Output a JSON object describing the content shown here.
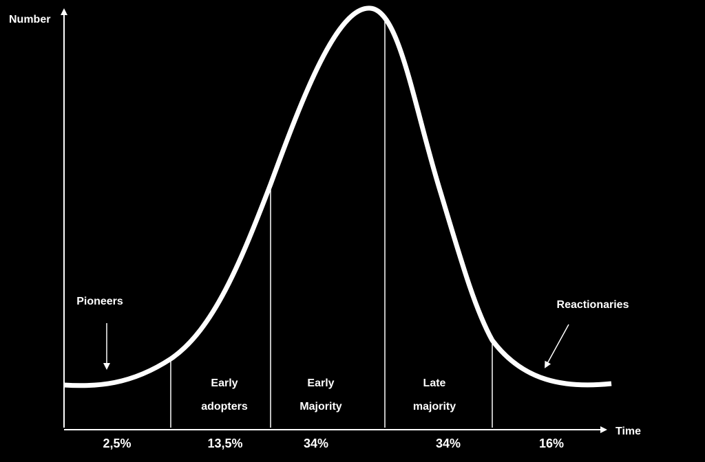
{
  "axes": {
    "y_label": "Number",
    "x_label": "Time"
  },
  "annotations": {
    "left": "Pioneers",
    "right": "Reactionaries"
  },
  "segments": [
    {
      "share": "2,5%"
    },
    {
      "label": [
        "Early",
        "adopters"
      ],
      "share": "13,5%"
    },
    {
      "label": [
        "Early",
        "Majority"
      ],
      "share": "34%"
    },
    {
      "label": [
        "Late",
        "majority"
      ],
      "share": "34%"
    },
    {
      "share": "16%"
    }
  ]
}
